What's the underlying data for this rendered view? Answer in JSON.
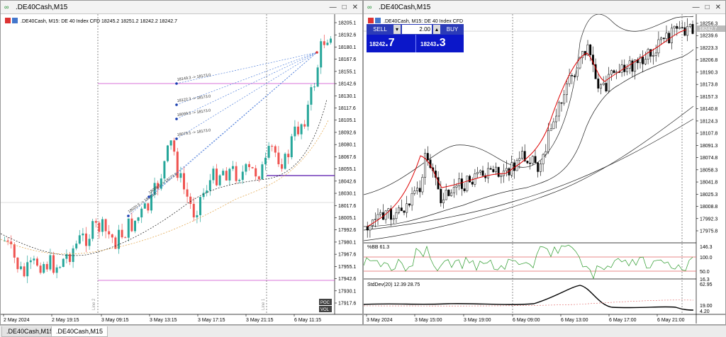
{
  "left_window": {
    "title": ".DE40Cash,M15",
    "chart_label": ".DE40Cash, M15:  DE 40 Index CFD  18245.2 18251.2 18242.2 18242.7",
    "price_ticks": [
      "18205.1",
      "18192.6",
      "18180.1",
      "18167.6",
      "18155.1",
      "18142.6",
      "18130.1",
      "18117.6",
      "18105.1",
      "18092.6",
      "18080.1",
      "18067.6",
      "18055.1",
      "18042.6",
      "18030.1",
      "18017.6",
      "18005.1",
      "17992.6",
      "17980.1",
      "17967.6",
      "17955.1",
      "17942.6",
      "17930.1",
      "17917.6"
    ],
    "time_ticks": [
      "2 May 2024",
      "2 May 19:15",
      "3 May 09:15",
      "3 May 13:15",
      "3 May 17:15",
      "3 May 21:15",
      "6 May 11:15"
    ],
    "annotations": [
      "18149.3 -> 18173.0",
      "18122.3 -> 18173.0",
      "18099.5 -> 18173.0",
      "18079.5 -> 18173.0",
      "18020.5 -> 18173.0",
      "18008.6 -> 18173.0"
    ],
    "vertical_labels": [
      "Line 2",
      "Line 1"
    ],
    "poc_label": "POC",
    "vol_label": "VOL"
  },
  "right_window": {
    "title": ".DE40Cash,M15",
    "chart_label": ".DE40Cash, M15:  DE 40 Index CFD",
    "trade_panel": {
      "sell_label": "SELL",
      "buy_label": "BUY",
      "volume": "2.00",
      "sell_price_small": "18242",
      "sell_price_big": ".7",
      "buy_price_small": "18243",
      "buy_price_big": ".3"
    },
    "price_ticks": [
      "18256.3",
      "18239.6",
      "18223.3",
      "18206.8",
      "18190.3",
      "18173.8",
      "18157.3",
      "18140.8",
      "18124.3",
      "18107.8",
      "18091.3",
      "18074.8",
      "18058.3",
      "18041.8",
      "18025.3",
      "18008.8",
      "17992.3",
      "17975.8"
    ],
    "current_price_label": "18242.7",
    "bb_label": "%BB 61.3",
    "bb_ticks": [
      "146.3",
      "100.0",
      "50.0",
      "16.3"
    ],
    "std_label": "StdDev(20) 12.39 28.75",
    "std_ticks": [
      "62.95",
      "19.00",
      "4.20"
    ],
    "time_ticks": [
      "3 May 2024",
      "3 May 15:00",
      "3 May 19:00",
      "6 May 09:00",
      "6 May 13:00",
      "6 May 17:00",
      "6 May 21:00"
    ]
  },
  "status_tabs": [
    ".DE40Cash,M15",
    ".DE40Cash,M15"
  ],
  "colors": {
    "bull": "#26a69a",
    "bear": "#ef5350",
    "accent": "#cc33cc",
    "blue_panel": "#0b17c9"
  }
}
